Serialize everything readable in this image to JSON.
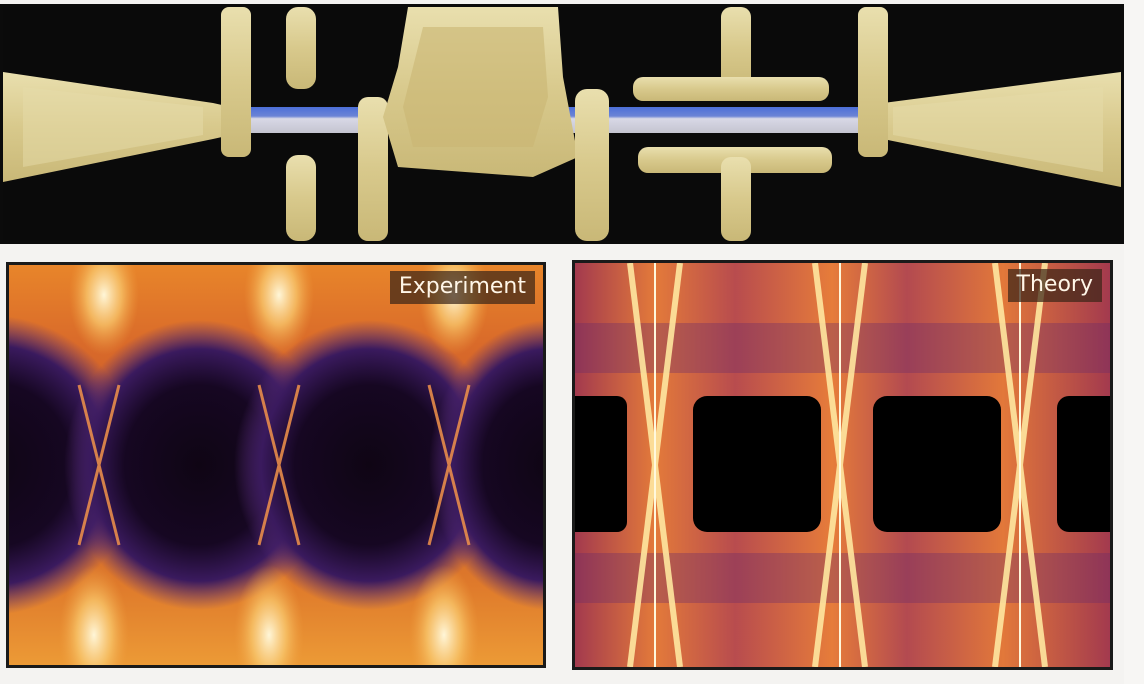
{
  "figure": {
    "device_image": {
      "description_icon": "sem-nanowire-device-image"
    },
    "experiment_panel": {
      "label": "Experiment"
    },
    "theory_panel": {
      "label": "Theory"
    }
  }
}
